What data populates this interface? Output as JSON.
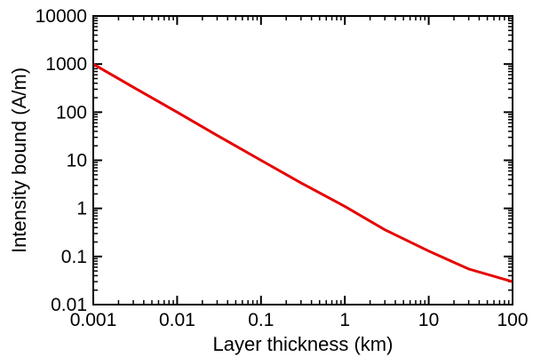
{
  "chart_data": {
    "type": "line",
    "title": "",
    "xlabel": "Layer thickness (km)",
    "ylabel": "Intensity bound (A/m)",
    "x_scale": "log",
    "y_scale": "log",
    "xlim": [
      0.001,
      100
    ],
    "ylim": [
      0.01,
      10000
    ],
    "x_ticks": [
      0.001,
      0.01,
      0.1,
      1,
      10,
      100
    ],
    "x_tick_labels": [
      "0.001",
      "0.01",
      "0.1",
      "1",
      "10",
      "100"
    ],
    "y_ticks": [
      0.01,
      0.1,
      1,
      10,
      100,
      1000,
      10000
    ],
    "y_tick_labels": [
      "0.01",
      "0.1",
      "1",
      "10",
      "100",
      "1000",
      "10000"
    ],
    "grid": false,
    "legend": "none",
    "series": [
      {
        "color": "#e60000",
        "x": [
          0.001,
          0.003,
          0.01,
          0.03,
          0.1,
          0.3,
          1,
          3,
          10,
          30,
          100
        ],
        "y": [
          1000,
          330,
          100,
          33,
          10,
          3.4,
          1.1,
          0.36,
          0.13,
          0.055,
          0.03
        ]
      }
    ]
  }
}
